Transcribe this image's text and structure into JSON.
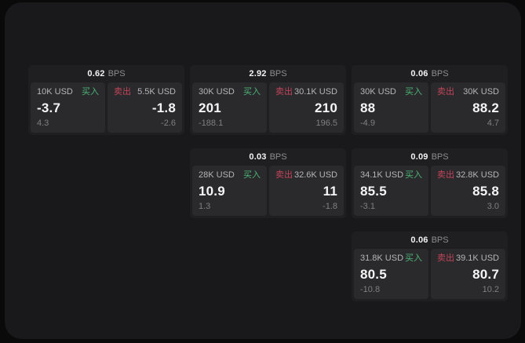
{
  "labels": {
    "bps_unit": "BPS",
    "buy": "买入",
    "sell": "卖出"
  },
  "colors": {
    "background": "#0a0a0b",
    "panel": "#19191b",
    "card": "#1f1f21",
    "cell": "#2a2a2c",
    "buy_green": "#4db378",
    "sell_red": "#c2445b",
    "value_white": "#f5f5f5",
    "muted_gray": "#b5b5b5",
    "sub_gray": "#7f7f7f"
  },
  "cards": [
    {
      "col": 0,
      "row": 0,
      "bps": "0.62",
      "buy": {
        "amount": "10K USD",
        "value": "-3.7",
        "sub": "4.3"
      },
      "sell": {
        "amount": "5.5K USD",
        "value": "-1.8",
        "sub": "-2.6"
      }
    },
    {
      "col": 1,
      "row": 0,
      "bps": "2.92",
      "buy": {
        "amount": "30K USD",
        "value": "201",
        "sub": "-188.1"
      },
      "sell": {
        "amount": "30.1K USD",
        "value": "210",
        "sub": "196.5"
      }
    },
    {
      "col": 2,
      "row": 0,
      "bps": "0.06",
      "buy": {
        "amount": "30K USD",
        "value": "88",
        "sub": "-4.9"
      },
      "sell": {
        "amount": "30K USD",
        "value": "88.2",
        "sub": "4.7"
      }
    },
    {
      "col": 1,
      "row": 1,
      "bps": "0.03",
      "buy": {
        "amount": "28K USD",
        "value": "10.9",
        "sub": "1.3"
      },
      "sell": {
        "amount": "32.6K USD",
        "value": "11",
        "sub": "-1.8"
      }
    },
    {
      "col": 2,
      "row": 1,
      "bps": "0.09",
      "buy": {
        "amount": "34.1K USD",
        "value": "85.5",
        "sub": "-3.1"
      },
      "sell": {
        "amount": "32.8K USD",
        "value": "85.8",
        "sub": "3.0"
      }
    },
    {
      "col": 2,
      "row": 2,
      "bps": "0.06",
      "buy": {
        "amount": "31.8K USD",
        "value": "80.5",
        "sub": "-10.8"
      },
      "sell": {
        "amount": "39.1K USD",
        "value": "80.7",
        "sub": "10.2"
      }
    }
  ]
}
